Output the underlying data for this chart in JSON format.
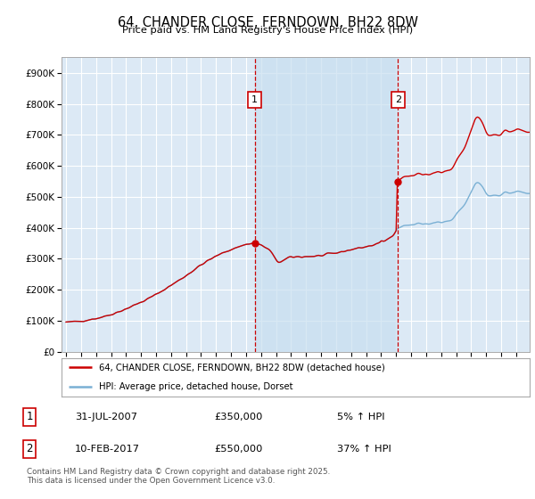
{
  "title": "64, CHANDER CLOSE, FERNDOWN, BH22 8DW",
  "subtitle": "Price paid vs. HM Land Registry's House Price Index (HPI)",
  "legend_line1": "64, CHANDER CLOSE, FERNDOWN, BH22 8DW (detached house)",
  "legend_line2": "HPI: Average price, detached house, Dorset",
  "annotation1": {
    "label": "1",
    "date": "31-JUL-2007",
    "price": 350000,
    "hpi_change": "5% ↑ HPI"
  },
  "annotation2": {
    "label": "2",
    "date": "10-FEB-2017",
    "price": 550000,
    "hpi_change": "37% ↑ HPI"
  },
  "footer": "Contains HM Land Registry data © Crown copyright and database right 2025.\nThis data is licensed under the Open Government Licence v3.0.",
  "ylim": [
    0,
    950000
  ],
  "yticks": [
    0,
    100000,
    200000,
    300000,
    400000,
    500000,
    600000,
    700000,
    800000,
    900000
  ],
  "background_color": "#dce9f5",
  "fill_color": "#c8dff0",
  "plot_bg_color": "#dce9f5",
  "red_color": "#cc0000",
  "blue_color": "#7ab0d4",
  "grid_color": "#ffffff",
  "sale1_x": 2007.58,
  "sale1_y": 350000,
  "sale2_x": 2017.12,
  "sale2_y": 550000,
  "xlim_left": 1994.7,
  "xlim_right": 2025.9
}
